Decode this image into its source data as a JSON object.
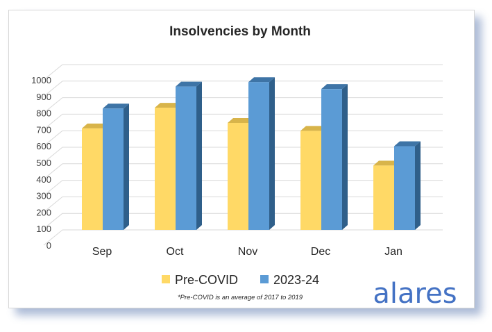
{
  "chart_data": {
    "type": "bar",
    "title": "Insolvencies by Month",
    "categories": [
      "Sep",
      "Oct",
      "Nov",
      "Dec",
      "Jan"
    ],
    "series": [
      {
        "name": "Pre-COVID",
        "values": [
          665,
          790,
          698,
          650,
          440
        ]
      },
      {
        "name": "2023-24",
        "values": [
          785,
          918,
          945,
          903,
          557
        ]
      }
    ],
    "ylim": [
      0,
      1000
    ],
    "yticks": [
      0,
      100,
      200,
      300,
      400,
      500,
      600,
      700,
      800,
      900,
      1000
    ],
    "xlabel": "",
    "ylabel": "",
    "grid": true,
    "legend": "bottom-center",
    "footnote": "*Pre-COVID is an average of 2017 to 2019"
  },
  "logo": {
    "text": "alares"
  },
  "colors": {
    "pre_covid_front": "#ffd966",
    "pre_covid_side": "#c9a43a",
    "pre_covid_top": "#d8b44a",
    "y2023_front": "#5b9bd5",
    "y2023_side": "#2f5f8a",
    "y2023_top": "#3e74a6",
    "grid": "#d9d9d9",
    "logo": "#4472c4"
  }
}
